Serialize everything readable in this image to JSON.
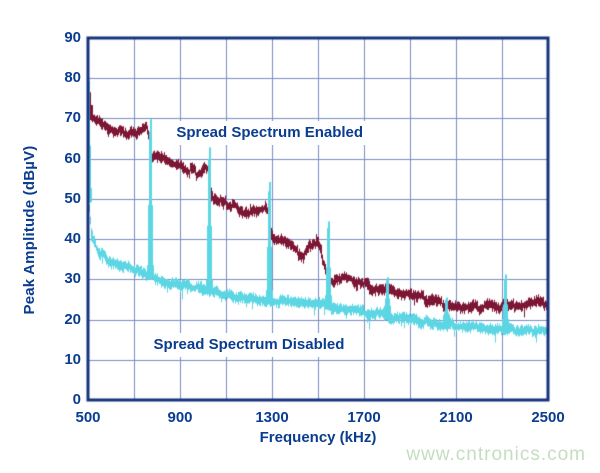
{
  "watermark": {
    "text": "www.cntronics.com",
    "color": "#c5ddc0"
  },
  "chart_data": {
    "type": "line",
    "title": "",
    "xlabel": "Frequency (kHz)",
    "ylabel": "Peak Amplitude (dBµV)",
    "xlim": [
      500,
      2500
    ],
    "ylim": [
      0,
      90
    ],
    "x_ticks": [
      "500",
      "900",
      "1300",
      "1700",
      "2100",
      "2500"
    ],
    "x_tick_values": [
      500,
      900,
      1300,
      1700,
      2100,
      2500
    ],
    "y_ticks": [
      "0",
      "10",
      "20",
      "30",
      "40",
      "50",
      "60",
      "70",
      "80",
      "90"
    ],
    "y_tick_values": [
      0,
      10,
      20,
      30,
      40,
      50,
      60,
      70,
      80,
      90
    ],
    "x_grid_step_kHz": 200,
    "y_grid_step_dB": 10,
    "grid": true,
    "legend_position": "in-plot-labels",
    "layout_hints": {
      "background": "#ffffff",
      "border_color": "#15337d",
      "grid_color": "#7a8dc5",
      "text_color": "#0a3c90"
    },
    "series": [
      {
        "name": "Spread Spectrum Enabled",
        "color": "#7c1634",
        "band_base": 0.6,
        "band_jitter": 1.0,
        "wobble": 0.8,
        "dropout_prob": 0.05,
        "dropout_depth": 1.6,
        "seed": 11,
        "keypoints": [
          [
            500,
            71
          ],
          [
            512,
            70.4
          ],
          [
            528,
            69.6
          ],
          [
            548,
            68.9
          ],
          [
            572,
            68.2
          ],
          [
            600,
            67.5
          ],
          [
            635,
            66.8
          ],
          [
            672,
            66.1
          ],
          [
            708,
            66
          ],
          [
            732,
            66.6
          ],
          [
            752,
            67.2
          ],
          [
            763,
            66
          ],
          [
            770,
            63
          ],
          [
            778,
            61.2
          ],
          [
            812,
            60.5
          ],
          [
            852,
            59.6
          ],
          [
            900,
            58.4
          ],
          [
            940,
            57.1
          ],
          [
            972,
            56.2
          ],
          [
            990,
            57.2
          ],
          [
            1006,
            58.2
          ],
          [
            1018,
            57.6
          ],
          [
            1028,
            54.5
          ],
          [
            1040,
            50.6
          ],
          [
            1075,
            49.4
          ],
          [
            1125,
            48.3
          ],
          [
            1175,
            47.1
          ],
          [
            1228,
            46.4
          ],
          [
            1252,
            46.9
          ],
          [
            1270,
            48.2
          ],
          [
            1283,
            46.8
          ],
          [
            1294,
            42.3
          ],
          [
            1305,
            40.2
          ],
          [
            1335,
            39.6
          ],
          [
            1375,
            38.5
          ],
          [
            1412,
            36.9
          ],
          [
            1438,
            36
          ],
          [
            1460,
            38.2
          ],
          [
            1480,
            39.5
          ],
          [
            1498,
            38.8
          ],
          [
            1515,
            36
          ],
          [
            1538,
            31.9
          ],
          [
            1560,
            28.8
          ],
          [
            1588,
            29.6
          ],
          [
            1615,
            30.7
          ],
          [
            1648,
            30.1
          ],
          [
            1682,
            28.9
          ],
          [
            1718,
            28.1
          ],
          [
            1768,
            27.5
          ],
          [
            1828,
            27
          ],
          [
            1888,
            26.4
          ],
          [
            1948,
            25.4
          ],
          [
            2008,
            24.6
          ],
          [
            2068,
            23.9
          ],
          [
            2128,
            23.5
          ],
          [
            2188,
            23.3
          ],
          [
            2248,
            23.5
          ],
          [
            2308,
            23.1
          ],
          [
            2368,
            23.3
          ],
          [
            2428,
            24
          ],
          [
            2458,
            24.5
          ],
          [
            2478,
            23.9
          ],
          [
            2500,
            24.7
          ]
        ],
        "spikes_kHz_dB": [
          [
            504,
            76.5
          ]
        ]
      },
      {
        "name": "Spread Spectrum Disabled",
        "color": "#5dd6e4",
        "band_base": 0.6,
        "band_jitter": 1.0,
        "wobble": 0.5,
        "dropout_prob": 0.07,
        "dropout_depth": 2.2,
        "seed": 29,
        "keypoints": [
          [
            500,
            52
          ],
          [
            506,
            46.5
          ],
          [
            513,
            42.4
          ],
          [
            522,
            39.7
          ],
          [
            534,
            37.4
          ],
          [
            548,
            35.8
          ],
          [
            562,
            36.3
          ],
          [
            580,
            35.1
          ],
          [
            602,
            34.3
          ],
          [
            632,
            33.6
          ],
          [
            666,
            33
          ],
          [
            702,
            32.4
          ],
          [
            740,
            31.8
          ],
          [
            760,
            31.4
          ],
          [
            780,
            30.6
          ],
          [
            806,
            30
          ],
          [
            842,
            29.4
          ],
          [
            882,
            28.9
          ],
          [
            930,
            28.4
          ],
          [
            982,
            28
          ],
          [
            1020,
            27.7
          ],
          [
            1042,
            26.7
          ],
          [
            1078,
            26.1
          ],
          [
            1128,
            25.6
          ],
          [
            1180,
            25.3
          ],
          [
            1242,
            25
          ],
          [
            1282,
            24.9
          ],
          [
            1304,
            24.6
          ],
          [
            1362,
            24.3
          ],
          [
            1422,
            24.1
          ],
          [
            1482,
            23.9
          ],
          [
            1532,
            23.7
          ],
          [
            1562,
            23.2
          ],
          [
            1602,
            22.8
          ],
          [
            1652,
            22.4
          ],
          [
            1702,
            21.9
          ],
          [
            1752,
            21.4
          ],
          [
            1802,
            20.9
          ],
          [
            1852,
            20.4
          ],
          [
            1902,
            19.9
          ],
          [
            1952,
            19.5
          ],
          [
            2002,
            19.1
          ],
          [
            2052,
            18.7
          ],
          [
            2102,
            18.5
          ],
          [
            2152,
            18.2
          ],
          [
            2202,
            18
          ],
          [
            2252,
            17.9
          ],
          [
            2302,
            17.7
          ],
          [
            2352,
            17.5
          ],
          [
            2402,
            17.4
          ],
          [
            2452,
            17.2
          ],
          [
            2500,
            17
          ]
        ],
        "spikes_kHz_dB": [
          [
            502,
            79.3
          ],
          [
            770,
            69.8
          ],
          [
            1028,
            62.8
          ],
          [
            1285,
            54.2
          ],
          [
            1542,
            44.4
          ],
          [
            1800,
            30.5
          ],
          [
            2058,
            25.5
          ],
          [
            2313,
            31.2
          ]
        ]
      }
    ],
    "annotations": [
      {
        "text": "Spread Spectrum Enabled",
        "x_kHz": 1290,
        "y_dB": 66.3
      },
      {
        "text": "Spread Spectrum Disabled",
        "x_kHz": 1200,
        "y_dB": 13.6
      }
    ]
  }
}
